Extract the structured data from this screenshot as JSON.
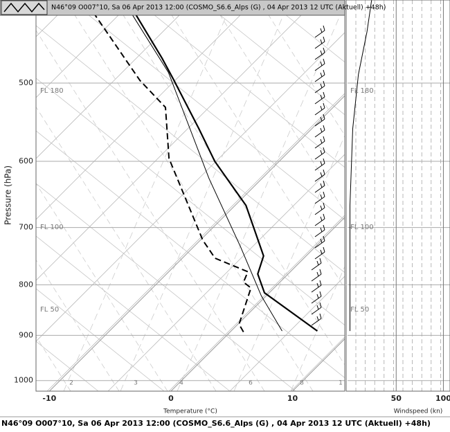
{
  "chart_data": {
    "type": "skew-t",
    "title": "N46°09 O007°10, Sa 06 Apr 2013 12:00 (COSMO_S6.6_Alps (G) , 04 Apr 2013 12 UTC (Aktuell) +48h)",
    "footer": "N46°09 O007°10, Sa 06 Apr 2013 12:00 (COSMO_S6.6_Alps (G) , 04 Apr 2013 12 UTC (Aktuell) +48h)",
    "ylabel": "Pressure (hPa)",
    "xlabel": "Temperature (°C)",
    "x2label": "Windspeed (kn)",
    "log_y": true,
    "ylim": [
      1025,
      412
    ],
    "yticks": [
      500,
      600,
      700,
      800,
      900,
      1000
    ],
    "xlim": [
      -11.1,
      14.3
    ],
    "xticks": [
      -10,
      0,
      10
    ],
    "x2lim": [
      -3,
      107
    ],
    "x2ticks": [
      50,
      100
    ],
    "flight_levels": [
      "FL 180",
      "FL 100",
      "FL 50"
    ],
    "mixing_ratio_labels": [
      "2",
      "3",
      "4",
      "6",
      "8",
      "1"
    ],
    "series": [
      {
        "color": "#000",
        "width": 2.2,
        "dashed": false,
        "pressure": [
          891,
          815,
          780,
          748,
          665,
          600,
          556,
          497,
          472,
          423
        ],
        "values": [
          7.1,
          -0.4,
          -2.5,
          -3.5,
          -9.1,
          -15.3,
          -19.3,
          -25.3,
          -28.1,
          -34.3
        ]
      },
      {
        "color": "#000",
        "width": 2,
        "dashed": true,
        "pressure": [
          893,
          877,
          806,
          795,
          776,
          752,
          721,
          596,
          529,
          497,
          423
        ],
        "values": [
          1.1,
          0.1,
          -1.9,
          -3.0,
          -3.5,
          -7.3,
          -9.8,
          -19.3,
          -23.8,
          -28.1,
          -37.7
        ]
      },
      {
        "color": "#000",
        "width": 1,
        "dashed": false,
        "pressure": [
          891,
          821,
          733,
          624,
          488,
          423
        ],
        "values": [
          4.2,
          -0.4,
          -6.1,
          -14.4,
          -26.4,
          -34.6
        ]
      },
      {
        "color": "#000",
        "width": 1,
        "dashed": false,
        "axis": "x2",
        "pressure": [
          891,
          665,
          556,
          490,
          444,
          412
        ],
        "values": [
          1,
          1,
          4,
          10,
          19,
          24
        ]
      }
    ]
  }
}
